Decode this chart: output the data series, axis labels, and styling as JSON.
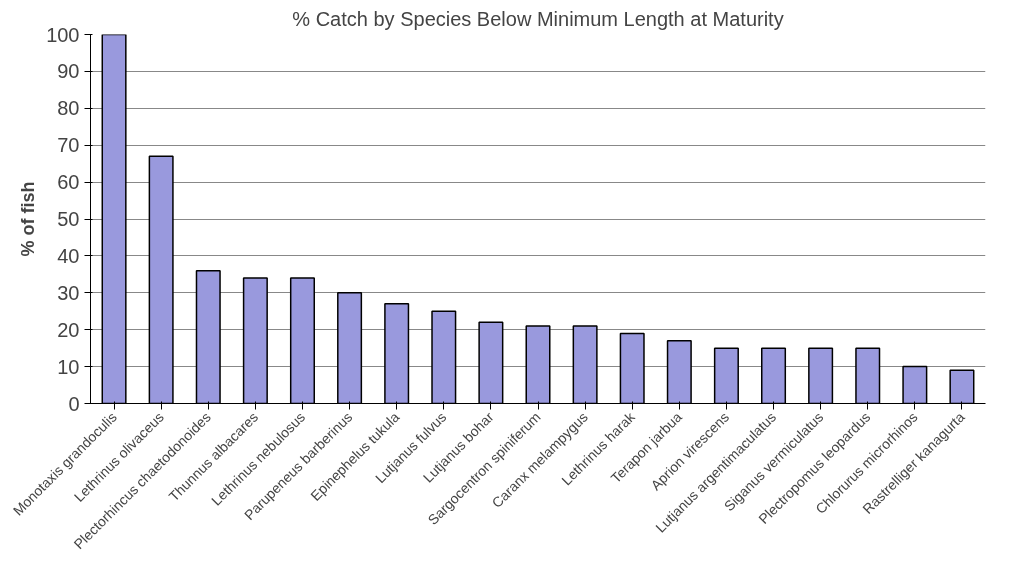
{
  "chart_data": {
    "type": "bar",
    "title": "% Catch by Species Below Minimum Length at Maturity",
    "ylabel": "% of fish",
    "categories": [
      "Monotaxis grandoculis",
      "Lethrinus olivaceus",
      "Plectorhincus chaetodonoides",
      "Thunnus albacares",
      "Lethrinus nebulosus",
      "Parupeneus barberinus",
      "Epinephelus tukula",
      "Lutjanus fulvus",
      "Lutjanus bohar",
      "Sargocentron spiniferum",
      "Caranx melampygus",
      "Lethrinus harak",
      "Terapon jarbua",
      "Aprion virescens",
      "Lutjanus argentimaculatus",
      "Siganus vermiculatus",
      "Plectropomus leopardus",
      "Chlorurus microrhinos",
      "Rastrelliger kanagurta"
    ],
    "values": [
      100,
      67,
      36,
      34,
      34,
      30,
      27,
      25,
      22,
      21,
      21,
      19,
      17,
      15,
      15,
      15,
      15,
      10,
      9
    ],
    "color": "#9999dd",
    "ylim": [
      0,
      100
    ],
    "yticks": [
      0,
      10,
      20,
      30,
      40,
      50,
      60,
      70,
      80,
      90,
      100
    ],
    "grid": "y"
  }
}
